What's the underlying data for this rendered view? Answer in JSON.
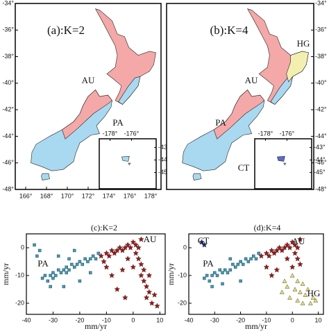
{
  "chart_data": [
    {
      "type": "map",
      "title": "(a):K=2",
      "annotations": [
        "AU",
        "PA"
      ],
      "region_colors": {
        "AU": "#f4a8a8",
        "PA": "#a9d9f0"
      },
      "xlim": [
        165,
        179
      ],
      "ylim": [
        -48,
        -34
      ],
      "xticks": [
        {
          "value": 166,
          "label": "166°"
        },
        {
          "value": 168,
          "label": "168°"
        },
        {
          "value": 170,
          "label": "170°"
        },
        {
          "value": 172,
          "label": "172°"
        },
        {
          "value": 174,
          "label": "174°"
        },
        {
          "value": 176,
          "label": "176°"
        },
        {
          "value": 178,
          "label": "178°"
        }
      ],
      "yticks": [
        {
          "value": -34,
          "label": "-34°"
        },
        {
          "value": -36,
          "label": "-36°"
        },
        {
          "value": -38,
          "label": "-38°"
        },
        {
          "value": -40,
          "label": "-40°"
        },
        {
          "value": -42,
          "label": "-42°"
        },
        {
          "value": -44,
          "label": "-44°"
        },
        {
          "value": -46,
          "label": "-46°"
        },
        {
          "value": -48,
          "label": "-48°"
        }
      ],
      "inset": {
        "xlim": [
          -179,
          -173.7
        ],
        "ylim": [
          -46.3,
          -42.3
        ],
        "xticks": [
          {
            "value": -178,
            "label": "-178°"
          },
          {
            "value": -176,
            "label": "-176°"
          }
        ],
        "yticks": [
          {
            "value": -43,
            "label": "-43°"
          },
          {
            "value": -44,
            "label": "-44°"
          },
          {
            "value": -45,
            "label": "-45°"
          }
        ]
      }
    },
    {
      "type": "map",
      "title": "(b):K=4",
      "annotations": [
        "AU",
        "PA",
        "HG",
        "CT"
      ],
      "region_colors": {
        "AU": "#f4a8a8",
        "PA": "#a9d9f0",
        "HG": "#f3efb0",
        "CT": "#5a6ad0"
      },
      "xlim": [
        165,
        179
      ],
      "ylim": [
        -48,
        -34
      ],
      "yticks": [
        {
          "value": -34,
          "label": "-34°"
        },
        {
          "value": -36,
          "label": "-36°"
        },
        {
          "value": -38,
          "label": "-38°"
        },
        {
          "value": -40,
          "label": "-40°"
        },
        {
          "value": -42,
          "label": "-42°"
        },
        {
          "value": -44,
          "label": "-44°"
        },
        {
          "value": -46,
          "label": "-46°"
        },
        {
          "value": -48,
          "label": "-48°"
        }
      ],
      "inset": {
        "xlim": [
          -179,
          -173.7
        ],
        "ylim": [
          -46.3,
          -42.3
        ],
        "xticks": [
          {
            "value": -178,
            "label": "-178°"
          },
          {
            "value": -176,
            "label": "-176°"
          }
        ],
        "yticks": [
          {
            "value": -43,
            "label": "-43°"
          },
          {
            "value": -44,
            "label": "-44°"
          },
          {
            "value": -45,
            "label": "-45°"
          }
        ]
      }
    },
    {
      "type": "scatter",
      "title": "(c):K=2",
      "xlabel": "mm/yr",
      "ylabel": "mm/yr",
      "xlim": [
        -40,
        12
      ],
      "ylim": [
        -24,
        5
      ],
      "xticks": [
        -40,
        -30,
        -20,
        -10,
        0,
        10
      ],
      "yticks": [
        0,
        -10,
        -20
      ],
      "series": [
        {
          "name": "PA",
          "color": "#3aa0c0",
          "marker": "square",
          "x": [
            -34,
            -33,
            -32,
            -31,
            -30,
            -30,
            -29,
            -28,
            -27,
            -26,
            -25,
            -25,
            -24,
            -23,
            -22,
            -21,
            -20,
            -19,
            -18,
            -17,
            -16,
            -15,
            -14,
            -36,
            -37,
            -35,
            -28,
            -22,
            -26,
            -20,
            -16,
            -13,
            -31,
            -24
          ],
          "y": [
            -11,
            -10,
            -12,
            -10,
            -11,
            -9,
            -10,
            -8,
            -9,
            -8,
            -9,
            -7,
            -8,
            -6,
            -7,
            -6,
            -5,
            -6,
            -4,
            -5,
            -4,
            -3,
            -4,
            -3,
            1,
            -1,
            -3,
            -1,
            -14,
            -12,
            -9,
            -2,
            -14,
            -4
          ]
        },
        {
          "name": "AU",
          "color": "#a51515",
          "marker": "star",
          "x": [
            -12,
            -10,
            -9,
            -8,
            -7,
            -6,
            -5,
            -4,
            -3,
            -2,
            -1,
            0,
            1,
            2,
            3,
            1,
            2,
            3,
            4,
            3,
            4,
            5,
            6,
            5,
            7,
            8,
            -2,
            0,
            -4,
            -8,
            -6,
            -3,
            9,
            -10,
            6,
            -11
          ],
          "y": [
            -3,
            -2,
            -3,
            -1,
            -2,
            -1,
            0,
            -1,
            0,
            1,
            0,
            2,
            1,
            0,
            3,
            -2,
            -4,
            -6,
            -8,
            -10,
            -12,
            -14,
            -16,
            -18,
            -20,
            -17,
            -4,
            -7,
            -8,
            -10,
            -15,
            -18,
            -21,
            -7,
            -10,
            -5
          ]
        }
      ]
    },
    {
      "type": "scatter",
      "title": "(d):K=4",
      "xlabel": "mm/yr",
      "ylabel": "mm/yr",
      "xlim": [
        -40,
        12
      ],
      "ylim": [
        -24,
        5
      ],
      "xticks": [
        -40,
        -30,
        -20,
        -10,
        0,
        10
      ],
      "yticks": [
        0,
        -10,
        -20
      ],
      "series": [
        {
          "name": "PA",
          "color": "#3aa0c0",
          "marker": "square",
          "x": [
            -34,
            -33,
            -32,
            -31,
            -30,
            -29,
            -28,
            -27,
            -26,
            -25,
            -24,
            -23,
            -22,
            -21,
            -20,
            -19,
            -18,
            -17,
            -16,
            -15,
            -14,
            -27,
            -20,
            -31,
            -24,
            -13
          ],
          "y": [
            -11,
            -10,
            -12,
            -10,
            -9,
            -10,
            -8,
            -9,
            -8,
            -9,
            -8,
            -6,
            -7,
            -6,
            -5,
            -6,
            -4,
            -5,
            -4,
            -3,
            -4,
            -13,
            -12,
            -14,
            -4,
            -2
          ]
        },
        {
          "name": "AU",
          "color": "#a51515",
          "marker": "star",
          "x": [
            -12,
            -10,
            -9,
            -8,
            -7,
            -6,
            -5,
            -4,
            -3,
            -2,
            -1,
            0,
            1,
            2,
            3,
            1,
            2,
            3,
            -8,
            -10,
            -2,
            0,
            -6
          ],
          "y": [
            -3,
            -2,
            -3,
            -1,
            -2,
            -1,
            0,
            -1,
            0,
            1,
            0,
            2,
            1,
            0,
            3,
            -2,
            -4,
            -6,
            -10,
            -7,
            -4,
            -7,
            -8
          ]
        },
        {
          "name": "HG",
          "color": "#e8e070",
          "marker": "triangle",
          "x": [
            0,
            2,
            4,
            -2,
            1,
            3,
            5,
            6,
            8,
            -4,
            -1,
            2,
            7,
            4,
            9,
            -3
          ],
          "y": [
            -10,
            -12,
            -13,
            -14,
            -15,
            -16,
            -17,
            -15,
            -18,
            -16,
            -18,
            -19,
            -20,
            -20,
            -19,
            -12
          ]
        },
        {
          "name": "CT",
          "color": "#1a2a70",
          "marker": "star",
          "x": [
            -35,
            -34
          ],
          "y": [
            2,
            1
          ]
        }
      ]
    }
  ]
}
